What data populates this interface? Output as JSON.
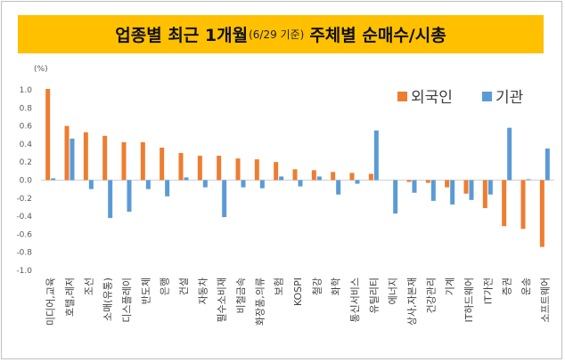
{
  "title": {
    "main_left": "업종별 최근 1개월",
    "sub": "(6/29 기준)",
    "main_right": "주체별 순매수/시총"
  },
  "chart_data": {
    "type": "bar",
    "unit_label": "(%)",
    "ylim": [
      -1.0,
      1.0
    ],
    "yticks": [
      "1.0",
      "0.8",
      "0.6",
      "0.4",
      "0.2",
      "0.0",
      "-0.2",
      "-0.4",
      "-0.6",
      "-0.8",
      "-1.0"
    ],
    "categories": [
      "미디어,교육",
      "호텔,레저",
      "조선",
      "소매(유통)",
      "디스플레이",
      "반도체",
      "은행",
      "건설",
      "자동차",
      "필수소비재",
      "비철금속",
      "화장품,의류",
      "보험",
      "KOSPI",
      "철강",
      "화학",
      "통신서비스",
      "유틸리티",
      "에너지",
      "상사,자본재",
      "건강관리",
      "기계",
      "IT하드웨어",
      "IT가전",
      "증권",
      "운송",
      "소프트웨어"
    ],
    "series": [
      {
        "name": "외국인",
        "color": "#ed7d31",
        "values": [
          1.01,
          0.6,
          0.53,
          0.49,
          0.42,
          0.42,
          0.36,
          0.3,
          0.27,
          0.27,
          0.24,
          0.23,
          0.2,
          0.12,
          0.11,
          0.09,
          0.08,
          0.07,
          0.0,
          -0.02,
          -0.03,
          -0.08,
          -0.15,
          -0.31,
          -0.51,
          -0.54,
          -0.74
        ]
      },
      {
        "name": "기관",
        "color": "#5b9bd5",
        "values": [
          0.02,
          0.46,
          -0.1,
          -0.42,
          -0.35,
          -0.1,
          -0.18,
          0.03,
          -0.08,
          -0.41,
          -0.08,
          -0.09,
          0.04,
          -0.07,
          0.04,
          -0.16,
          -0.04,
          0.55,
          -0.37,
          -0.14,
          -0.23,
          -0.27,
          -0.22,
          -0.16,
          0.58,
          0.01,
          0.35
        ]
      }
    ],
    "legend_position": "top-right",
    "grid": false
  }
}
